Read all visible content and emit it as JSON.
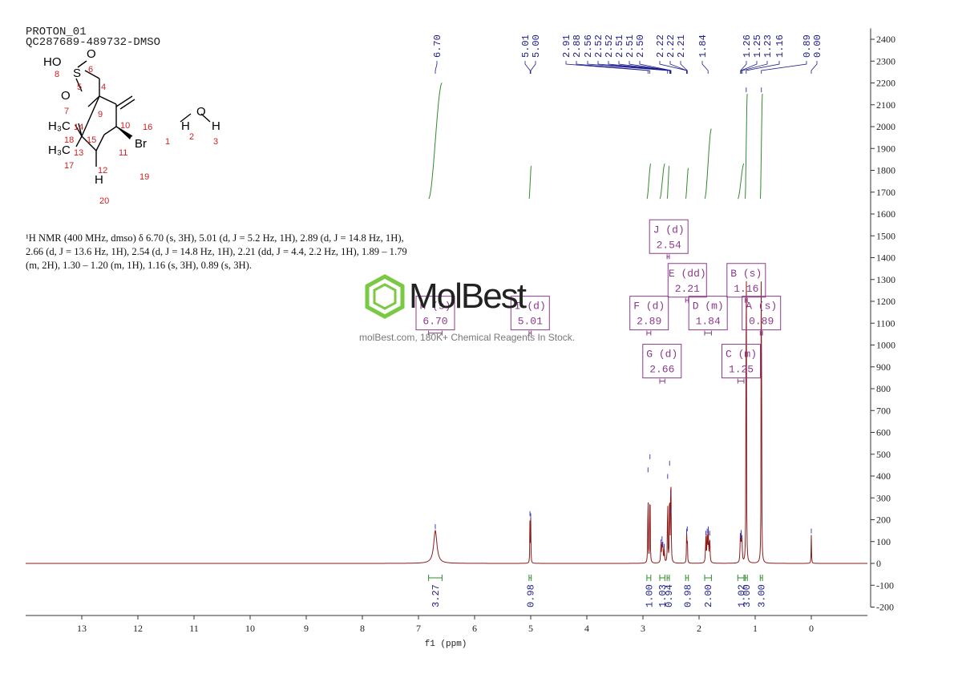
{
  "header": {
    "line1": "PROTON_01",
    "line2": "QC287689-489732-DMSO"
  },
  "description": {
    "line1": "¹H NMR (400 MHz, dmso) δ 6.70 (s, 3H), 5.01 (d, J = 5.2 Hz, 1H), 2.89 (d, J = 14.8 Hz, 1H),",
    "line2": "2.66 (d, J = 13.6 Hz, 1H), 2.54 (d, J = 14.8 Hz, 1H), 2.21 (dd, J = 4.4, 2.2 Hz, 1H), 1.89 – 1.79",
    "line3": "(m, 2H), 1.30 – 1.20 (m, 1H), 1.16 (s, 3H), 0.89 (s, 3H)."
  },
  "watermark": {
    "brand": "MolBest",
    "tagline": "molBest.com, 180K+ Chemical Reagents In Stock."
  },
  "molecule": {
    "atoms": [
      "HO",
      "O",
      "S",
      "O",
      "H",
      "O",
      "H",
      "H₃C",
      "H₃C",
      "Br",
      "H"
    ],
    "numbers": [
      "8",
      "6",
      "5",
      "4",
      "7",
      "9",
      "10",
      "16",
      "14",
      "15",
      "18",
      "13",
      "17",
      "12",
      "11",
      "19",
      "20",
      "1",
      "2",
      "3"
    ],
    "colors": {
      "bond": "#000000",
      "number": "#cc2222"
    }
  },
  "chart_data": {
    "type": "line",
    "xlabel": "f1 (ppm)",
    "xlim": [
      14.0,
      -1.0
    ],
    "ylim": [
      -200,
      2450
    ],
    "x_ticks": [
      13,
      12,
      11,
      10,
      9,
      8,
      7,
      6,
      5,
      4,
      3,
      2,
      1,
      0
    ],
    "y_ticks": [
      2400,
      2300,
      2200,
      2100,
      2000,
      1900,
      1800,
      1700,
      1600,
      1500,
      1400,
      1300,
      1200,
      1100,
      1000,
      900,
      800,
      700,
      600,
      500,
      400,
      300,
      200,
      100,
      0,
      -100,
      -200
    ],
    "peak_labels": [
      "6.70",
      "5.01",
      "5.00",
      "2.91",
      "2.88",
      "2.56",
      "2.52",
      "2.52",
      "2.51",
      "2.51",
      "2.50",
      "2.22",
      "2.22",
      "2.21",
      "1.84",
      "1.26",
      "1.25",
      "1.23",
      "1.16",
      "0.89",
      "0.00"
    ],
    "peaks": [
      {
        "ppm": 6.7,
        "height": 150,
        "width": 0.035
      },
      {
        "ppm": 5.013,
        "height": 210,
        "width": 0.0035
      },
      {
        "ppm": 5.0,
        "height": 200,
        "width": 0.0035
      },
      {
        "ppm": 2.91,
        "height": 410,
        "width": 0.004
      },
      {
        "ppm": 2.875,
        "height": 470,
        "width": 0.004
      },
      {
        "ppm": 2.68,
        "height": 80,
        "width": 0.006
      },
      {
        "ppm": 2.66,
        "height": 95,
        "width": 0.006
      },
      {
        "ppm": 2.645,
        "height": 70,
        "width": 0.006
      },
      {
        "ppm": 2.62,
        "height": 60,
        "width": 0.006
      },
      {
        "ppm": 2.56,
        "height": 380,
        "width": 0.004
      },
      {
        "ppm": 2.525,
        "height": 440,
        "width": 0.004
      },
      {
        "ppm": 2.505,
        "height": 300,
        "width": 0.004
      },
      {
        "ppm": 2.5,
        "height": 220,
        "width": 0.005
      },
      {
        "ppm": 2.222,
        "height": 130,
        "width": 0.004
      },
      {
        "ppm": 2.21,
        "height": 140,
        "width": 0.004
      },
      {
        "ppm": 1.88,
        "height": 120,
        "width": 0.006
      },
      {
        "ppm": 1.855,
        "height": 130,
        "width": 0.006
      },
      {
        "ppm": 1.835,
        "height": 140,
        "width": 0.006
      },
      {
        "ppm": 1.81,
        "height": 120,
        "width": 0.006
      },
      {
        "ppm": 1.265,
        "height": 110,
        "width": 0.006
      },
      {
        "ppm": 1.25,
        "height": 120,
        "width": 0.006
      },
      {
        "ppm": 1.235,
        "height": 100,
        "width": 0.006
      },
      {
        "ppm": 1.16,
        "height": 2150,
        "width": 0.0035
      },
      {
        "ppm": 0.89,
        "height": 2150,
        "width": 0.0035
      },
      {
        "ppm": 0.0,
        "height": 130,
        "width": 0.004
      }
    ],
    "integrals": [
      {
        "from": 6.82,
        "to": 6.58,
        "y_start": 1670,
        "y_end": 2200,
        "label": "3.27",
        "center": 6.7
      },
      {
        "from": 5.03,
        "to": 4.99,
        "y_start": 1670,
        "y_end": 1820,
        "label": "0.98",
        "center": 5.01
      },
      {
        "from": 2.93,
        "to": 2.86,
        "y_start": 1670,
        "y_end": 1830,
        "label": "1.00",
        "center": 2.89
      },
      {
        "from": 2.7,
        "to": 2.61,
        "y_start": 1670,
        "y_end": 1830,
        "label": "1.03",
        "center": 2.66
      },
      {
        "from": 2.57,
        "to": 2.53,
        "y_start": 1670,
        "y_end": 1820,
        "label": "0.94",
        "center": 2.54
      },
      {
        "from": 2.24,
        "to": 2.19,
        "y_start": 1670,
        "y_end": 1810,
        "label": "0.98",
        "center": 2.21
      },
      {
        "from": 1.9,
        "to": 1.78,
        "y_start": 1670,
        "y_end": 1990,
        "label": "2.00",
        "center": 1.84
      },
      {
        "from": 1.31,
        "to": 1.2,
        "y_start": 1670,
        "y_end": 1830,
        "label": "1.02",
        "center": 1.25
      },
      {
        "from": 1.18,
        "to": 1.14,
        "y_start": 1670,
        "y_end": 2150,
        "label": "3.00",
        "center": 1.16
      },
      {
        "from": 0.91,
        "to": 0.87,
        "y_start": 1670,
        "y_end": 2150,
        "label": "3.00",
        "center": 0.89
      }
    ],
    "multiplets": [
      {
        "letter": "H",
        "type": "(s)",
        "shift": "6.70",
        "center": 6.7,
        "y": 1150,
        "bar": [
          6.82,
          6.58
        ]
      },
      {
        "letter": "I",
        "type": "(d)",
        "shift": "5.01",
        "center": 5.01,
        "y": 1150,
        "bar": [
          5.03,
          4.99
        ]
      },
      {
        "letter": "J",
        "type": "(d)",
        "shift": "2.54",
        "center": 2.54,
        "y": 1500,
        "bar": [
          2.57,
          2.53
        ]
      },
      {
        "letter": "E",
        "type": "(dd)",
        "shift": "2.21",
        "center": 2.21,
        "y": 1300,
        "bar": [
          2.24,
          2.19
        ]
      },
      {
        "letter": "F",
        "type": "(d)",
        "shift": "2.89",
        "center": 2.89,
        "y": 1150,
        "bar": [
          2.93,
          2.86
        ]
      },
      {
        "letter": "D",
        "type": "(m)",
        "shift": "1.84",
        "center": 1.84,
        "y": 1150,
        "bar": [
          1.9,
          1.78
        ]
      },
      {
        "letter": "G",
        "type": "(d)",
        "shift": "2.66",
        "center": 2.66,
        "y": 930,
        "bar": [
          2.7,
          2.61
        ]
      },
      {
        "letter": "B",
        "type": "(s)",
        "shift": "1.16",
        "center": 1.16,
        "y": 1300,
        "bar": [
          1.18,
          1.14
        ]
      },
      {
        "letter": "A",
        "type": "(s)",
        "shift": "0.89",
        "center": 0.89,
        "y": 1150,
        "bar": [
          0.91,
          0.87
        ]
      },
      {
        "letter": "C",
        "type": "(m)",
        "shift": "1.25",
        "center": 1.25,
        "y": 930,
        "bar": [
          1.31,
          1.2
        ]
      }
    ],
    "colors": {
      "spectrum": "#8b1a1a",
      "integral_curve": "#2e8b2e",
      "integral_bracket": "#2e8b2e",
      "integral_label": "#1a1a8b",
      "peak_label": "#1a1a8b",
      "multiplet_box": "#8b3a8b",
      "peak_tip": "#4040c0",
      "axis": "#333333"
    }
  }
}
